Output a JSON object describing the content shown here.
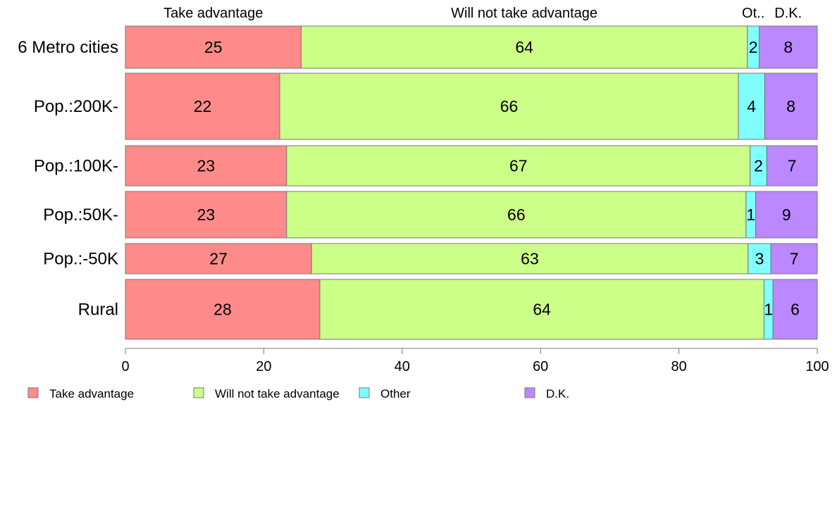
{
  "chart_data": {
    "type": "bar",
    "orientation": "horizontal",
    "stacked": true,
    "categories": [
      "6 Metro cities",
      "Pop.:200K-",
      "Pop.:100K-",
      "Pop.:50K-",
      "Pop.:-50K",
      "Rural"
    ],
    "series": [
      {
        "name": "Take advantage",
        "short": "Take advantage",
        "color": "#ff8a8a",
        "values": [
          25.4,
          22.3,
          23.3,
          23.3,
          26.9,
          28.1
        ]
      },
      {
        "name": "Will not take advantage",
        "short": "Will not take advantage",
        "color": "#ccff88",
        "values": [
          64.5,
          66.3,
          67.0,
          66.4,
          63.1,
          64.2
        ]
      },
      {
        "name": "Other",
        "short": "Ot..",
        "color": "#80ffff",
        "values": [
          1.7,
          3.8,
          2.4,
          1.4,
          3.3,
          1.3
        ]
      },
      {
        "name": "D.K.",
        "short": "D.K.",
        "color": "#bb88ff",
        "values": [
          8.4,
          7.6,
          7.3,
          8.9,
          6.7,
          6.4
        ]
      }
    ],
    "data_labels": [
      [
        "25",
        "22",
        "23",
        "23",
        "27",
        "28"
      ],
      [
        "64",
        "66",
        "67",
        "66",
        "63",
        "64"
      ],
      [
        "2",
        "4",
        "2",
        "1",
        "3",
        "1"
      ],
      [
        "8",
        "8",
        "7",
        "9",
        "7",
        "6"
      ]
    ],
    "xlim": [
      0,
      100
    ],
    "xticks": [
      0,
      20,
      40,
      60,
      80,
      100
    ],
    "xlabel": "",
    "ylabel": "",
    "title": "",
    "grid": false,
    "legend_position": "bottom"
  }
}
